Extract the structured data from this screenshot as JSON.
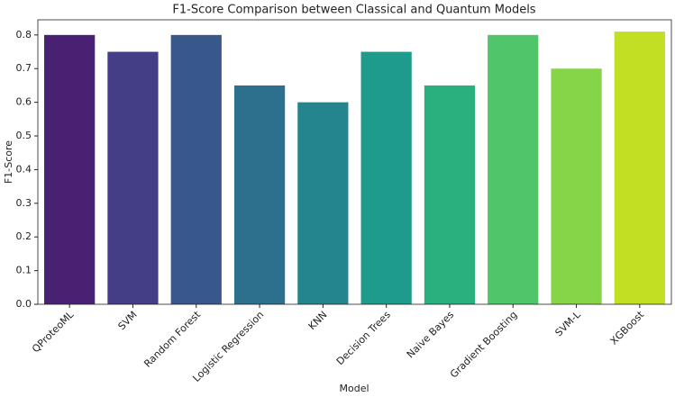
{
  "chart_data": {
    "type": "bar",
    "title": "F1-Score Comparison between Classical and Quantum Models",
    "x_label": "Model",
    "y_label": "F1-Score",
    "categories": [
      "QProteoML",
      "SVM",
      "Random Forest",
      "Logistic Regression",
      "KNN",
      "Decision Trees",
      "Naive Bayes",
      "Gradient Boosting",
      "SVM-L",
      "XGBoost"
    ],
    "values": [
      0.8,
      0.75,
      0.8,
      0.65,
      0.6,
      0.75,
      0.65,
      0.8,
      0.7,
      0.81
    ],
    "colors": [
      "#482173",
      "#433e85",
      "#38588c",
      "#2d708e",
      "#25858e",
      "#1e9b8a",
      "#2ab07f",
      "#51c56a",
      "#86d549",
      "#c2df23"
    ],
    "ylim": [
      0,
      0.845
    ],
    "yticks": [
      {
        "value": 0,
        "label": "0.0"
      },
      0.1,
      0.2,
      0.3,
      0.4,
      0.5,
      0.6,
      0.7,
      0.8
    ],
    "grid": false
  }
}
